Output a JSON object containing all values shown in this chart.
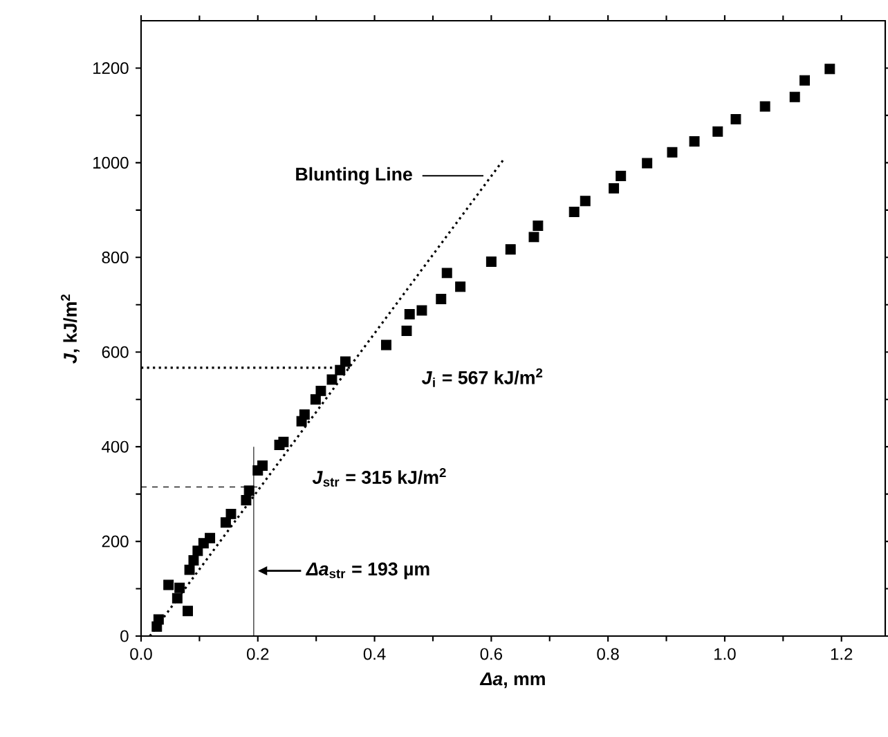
{
  "chart_data": {
    "type": "scatter",
    "xlabel": "*Δa*, mm",
    "ylabel": "*J*, kJ/m$^{2}$",
    "xlim": [
      0,
      1.275
    ],
    "ylim": [
      0,
      1300
    ],
    "xticks": [
      {
        "value": 0,
        "label": "0.0"
      },
      {
        "value": 0.2,
        "label": "0.2"
      },
      {
        "value": 0.4,
        "label": "0.4"
      },
      {
        "value": 0.6,
        "label": "0.6"
      },
      {
        "value": 0.8,
        "label": "0.8"
      },
      {
        "value": 1.0,
        "label": "1.0"
      },
      {
        "value": 1.2,
        "label": "1.2"
      }
    ],
    "yticks": [
      0,
      200,
      400,
      600,
      800,
      1000,
      1200
    ],
    "grid": false,
    "series": [
      {
        "marker": "square",
        "color": "#000000",
        "x": [
          0.027,
          0.03,
          0.047,
          0.062,
          0.066,
          0.08,
          0.083,
          0.09,
          0.097,
          0.107,
          0.118,
          0.145,
          0.154,
          0.18,
          0.185,
          0.2,
          0.208,
          0.237,
          0.244,
          0.275,
          0.28,
          0.299,
          0.308,
          0.327,
          0.341,
          0.35,
          0.42,
          0.455,
          0.46,
          0.481,
          0.514,
          0.524,
          0.547,
          0.6,
          0.633,
          0.673,
          0.68,
          0.742,
          0.761,
          0.81,
          0.822,
          0.867,
          0.91,
          0.948,
          0.988,
          1.019,
          1.069,
          1.12,
          1.137,
          1.18
        ],
        "values": [
          20,
          35,
          108,
          80,
          102,
          53,
          140,
          160,
          180,
          196,
          207,
          240,
          258,
          287,
          307,
          350,
          360,
          404,
          410,
          454,
          468,
          500,
          518,
          542,
          562,
          580,
          615,
          645,
          680,
          688,
          712,
          767,
          738,
          791,
          817,
          843,
          867,
          896,
          919,
          946,
          972,
          999,
          1022,
          1045,
          1066,
          1092,
          1119,
          1139,
          1174,
          1198
        ]
      },
      {
        "type": "line",
        "marker": "none",
        "line_style": "dotted",
        "color": "#000000",
        "x": [
          0.015,
          0.623
        ],
        "values": [
          0,
          1010
        ]
      },
      {
        "type": "line",
        "marker": "none",
        "line_style": "dotted",
        "color": "#000000",
        "x": [
          0,
          0.36
        ],
        "values": [
          567,
          567
        ]
      },
      {
        "type": "line",
        "marker": "none",
        "line_style": "dashed",
        "color": "#000000",
        "x": [
          0,
          0.2
        ],
        "values": [
          315,
          315
        ]
      },
      {
        "type": "line",
        "marker": "none",
        "line_style": "solid",
        "color": "#000000",
        "x": [
          0.193,
          0.193
        ],
        "values": [
          0,
          400
        ]
      }
    ],
    "annotations": [
      "Blunting Line",
      "*J*$_{i}$ = 567 kJ/m$^{2}$",
      "*J*$_{str}$ = 315 kJ/m$^{2}$",
      "*Δa*$_{str}$ = 193 µm"
    ]
  }
}
